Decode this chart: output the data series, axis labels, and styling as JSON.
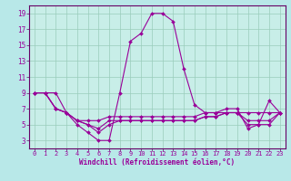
{
  "title": "",
  "xlabel": "Windchill (Refroidissement éolien,°C)",
  "background_color": "#b8e8e8",
  "plot_bg_color": "#c8eee8",
  "grid_color": "#99ccbb",
  "line_color": "#990099",
  "spine_color": "#660066",
  "x_ticks": [
    0,
    1,
    2,
    3,
    4,
    5,
    6,
    7,
    8,
    9,
    10,
    11,
    12,
    13,
    14,
    15,
    16,
    17,
    18,
    19,
    20,
    21,
    22,
    23
  ],
  "y_ticks": [
    3,
    5,
    7,
    9,
    11,
    13,
    15,
    17,
    19
  ],
  "xlim": [
    -0.5,
    23.5
  ],
  "ylim": [
    2.0,
    20.0
  ],
  "series": [
    [
      9.0,
      9.0,
      9.0,
      6.5,
      5.0,
      4.0,
      3.0,
      3.0,
      9.0,
      15.5,
      16.5,
      19.0,
      19.0,
      18.0,
      12.0,
      7.5,
      6.5,
      6.5,
      7.0,
      7.0,
      4.5,
      5.0,
      8.0,
      6.5
    ],
    [
      9.0,
      9.0,
      7.0,
      6.5,
      5.5,
      5.5,
      5.5,
      6.0,
      6.0,
      6.0,
      6.0,
      6.0,
      6.0,
      6.0,
      6.0,
      6.0,
      6.5,
      6.5,
      6.5,
      6.5,
      6.5,
      6.5,
      6.5,
      6.5
    ],
    [
      9.0,
      9.0,
      7.0,
      6.5,
      5.5,
      5.0,
      4.5,
      5.5,
      5.5,
      5.5,
      5.5,
      5.5,
      5.5,
      5.5,
      5.5,
      5.5,
      6.0,
      6.0,
      6.5,
      6.5,
      5.5,
      5.5,
      5.5,
      6.5
    ],
    [
      9.0,
      9.0,
      7.0,
      6.5,
      5.5,
      5.0,
      4.0,
      5.0,
      5.5,
      5.5,
      5.5,
      5.5,
      5.5,
      5.5,
      5.5,
      5.5,
      6.0,
      6.0,
      6.5,
      6.5,
      5.0,
      5.0,
      5.0,
      6.5
    ]
  ],
  "tick_fontsize": 5,
  "xlabel_fontsize": 5.5,
  "marker_size": 2.0,
  "linewidth": 0.8
}
